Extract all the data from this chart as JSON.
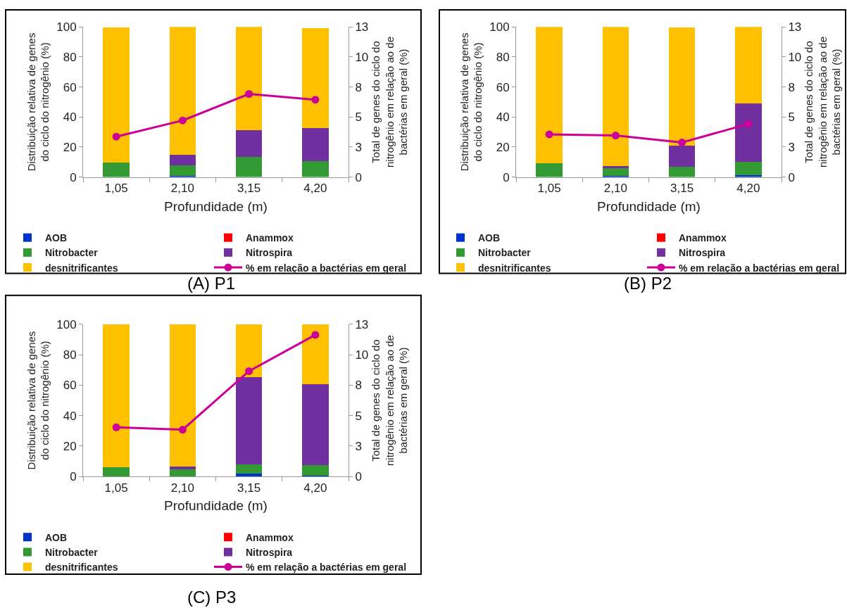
{
  "chart_data": [
    {
      "type": "bar",
      "stacked": true,
      "title": "(A) P1",
      "xlabel": "Profundidade (m)",
      "ylabel": "Distribuição relativa de genes do ciclo do nitrogênio (%)",
      "y2label": "Total de genes do ciclo do nitrogênio em relação ao de bactérias em geral (%)",
      "categories": [
        "1,05",
        "2,10",
        "3,15",
        "4,20"
      ],
      "ylim": [
        0,
        100
      ],
      "yticks": [
        0,
        20,
        40,
        60,
        80,
        100
      ],
      "y2lim": [
        0,
        13
      ],
      "y2ticks": [
        0,
        {
          "value": 2.6,
          "label": "3"
        },
        {
          "value": 5.2,
          "label": "5"
        },
        {
          "value": 7.8,
          "label": "8"
        },
        {
          "value": 10.4,
          "label": "10"
        },
        13
      ],
      "legend": "bottom",
      "series": [
        {
          "name": "AOB",
          "color": "#0033cc",
          "values": [
            0,
            0.9,
            0,
            null
          ]
        },
        {
          "name": "Anammox",
          "color": "#ff0000",
          "values": [
            0,
            0,
            0,
            0
          ]
        },
        {
          "name": "Nitrobacter",
          "color": "#339933",
          "values": [
            9.5,
            7,
            13.5,
            10.7
          ]
        },
        {
          "name": "Nitrospira",
          "color": "#7030a0",
          "values": [
            null,
            7,
            17.8,
            21.9
          ]
        },
        {
          "name": "desnitrificantes",
          "color": "#ffc000",
          "values": [
            90.2,
            85.1,
            68.7,
            66.4
          ]
        },
        {
          "name": "% em relação a bactérias em geral",
          "type": "line",
          "axis": "y2",
          "marker": "circle",
          "color": "#cc0099",
          "values": [
            3.5,
            4.9,
            7.2,
            6.7
          ]
        }
      ]
    },
    {
      "type": "bar",
      "stacked": true,
      "title": "(B) P2",
      "xlabel": "Profundidade (m)",
      "ylabel": "Distribuição relativa de genes do ciclo do nitrogênio (%)",
      "y2label": "Total de genes do ciclo do nitrogênio em relação ao de bactérias em geral (%)",
      "categories": [
        "1,05",
        "2,10",
        "3,15",
        "4,20"
      ],
      "ylim": [
        0,
        100
      ],
      "yticks": [
        0,
        20,
        40,
        60,
        80,
        100
      ],
      "y2lim": [
        0,
        13
      ],
      "y2ticks": [
        0,
        {
          "value": 2.6,
          "label": "3"
        },
        {
          "value": 5.2,
          "label": "5"
        },
        {
          "value": 7.8,
          "label": "8"
        },
        {
          "value": 10.4,
          "label": "10"
        },
        13
      ],
      "legend": "bottom",
      "series": [
        {
          "name": "AOB",
          "color": "#0033cc",
          "values": [
            0,
            0.7,
            null,
            1.2
          ]
        },
        {
          "name": "Anammox",
          "color": "#ff0000",
          "values": [
            0,
            0,
            0,
            0
          ]
        },
        {
          "name": "Nitrobacter",
          "color": "#339933",
          "values": [
            9.4,
            5,
            6.8,
            8.9
          ]
        },
        {
          "name": "Nitrospira",
          "color": "#7030a0",
          "values": [
            0,
            1.6,
            14.1,
            38.9
          ]
        },
        {
          "name": "desnitrificantes",
          "color": "#ffc000",
          "values": [
            90.6,
            92.7,
            78.6,
            51
          ]
        },
        {
          "name": "% em relação a bactérias em geral",
          "type": "line",
          "axis": "y2",
          "marker": "circle",
          "color": "#cc0099",
          "values": [
            3.7,
            3.6,
            3.0,
            4.6
          ]
        }
      ]
    },
    {
      "type": "bar",
      "stacked": true,
      "title": "(C) P3",
      "xlabel": "Profundidade (m)",
      "ylabel": "Distribuição relativa de genes do ciclo do nitrogênio (%)",
      "y2label": "Total de genes do ciclo do nitrogênio em relação ao de bactérias em geral (%)",
      "categories": [
        "1,05",
        "2,10",
        "3,15",
        "4,20"
      ],
      "ylim": [
        0,
        100
      ],
      "yticks": [
        0,
        20,
        40,
        60,
        80,
        100
      ],
      "y2lim": [
        0,
        13
      ],
      "y2ticks": [
        0,
        {
          "value": 2.6,
          "label": "3"
        },
        {
          "value": 5.2,
          "label": "5"
        },
        {
          "value": 7.8,
          "label": "8"
        },
        {
          "value": 10.4,
          "label": "10"
        },
        13
      ],
      "legend": "bottom",
      "series": [
        {
          "name": "AOB",
          "color": "#0033cc",
          "values": [
            0,
            0,
            1.8,
            0.5
          ]
        },
        {
          "name": "Anammox",
          "color": "#ff0000",
          "values": [
            0,
            0,
            0,
            0
          ]
        },
        {
          "name": "Nitrobacter",
          "color": "#339933",
          "values": [
            6.1,
            4.5,
            6.2,
            6.8
          ]
        },
        {
          "name": "Nitrospira",
          "color": "#7030a0",
          "values": [
            0,
            2.1,
            57.5,
            53.2
          ]
        },
        {
          "name": "desnitrificantes",
          "color": "#ffc000",
          "values": [
            93.9,
            93.4,
            34.5,
            39.5
          ]
        },
        {
          "name": "% em relação a bactérias em geral",
          "type": "line",
          "axis": "y2",
          "marker": "circle",
          "color": "#cc0099",
          "values": [
            4.2,
            4.0,
            9.0,
            12.1
          ]
        }
      ]
    }
  ]
}
